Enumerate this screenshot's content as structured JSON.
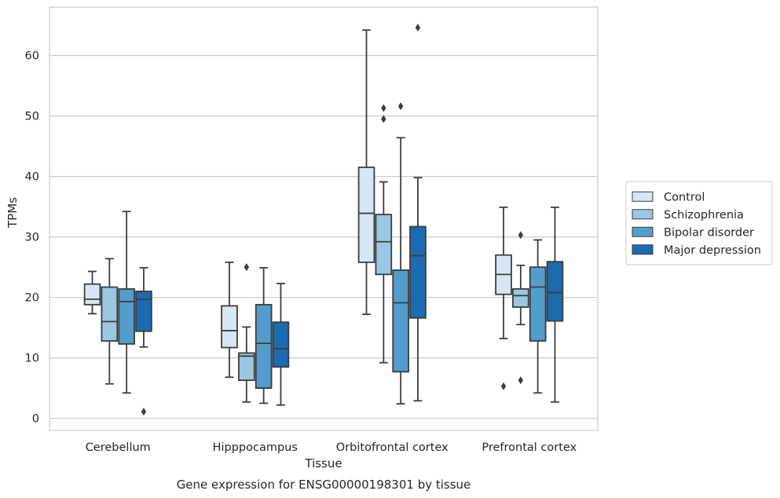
{
  "chart_data": {
    "type": "box",
    "xlabel": "Tissue",
    "ylabel": "TPMs",
    "caption": "Gene expression for ENSG00000198301 by tissue",
    "ylim": [
      -2,
      68
    ],
    "yticks": [
      0,
      10,
      20,
      30,
      40,
      50,
      60
    ],
    "grid": true,
    "legend_position": "right",
    "categories": [
      "Cerebellum",
      "Hipppocampus",
      "Orbitofrontal cortex",
      "Prefrontal cortex"
    ],
    "series": [
      {
        "name": "Control",
        "color": "#d6e6f4",
        "boxes": [
          {
            "wlo": 17.3,
            "q1": 18.8,
            "med": 19.7,
            "q3": 22.2,
            "whi": 24.3,
            "fliers": []
          },
          {
            "wlo": 6.8,
            "q1": 11.7,
            "med": 14.5,
            "q3": 18.6,
            "whi": 25.8,
            "fliers": []
          },
          {
            "wlo": 17.2,
            "q1": 25.8,
            "med": 33.9,
            "q3": 41.5,
            "whi": 64.2,
            "fliers": []
          },
          {
            "wlo": 13.2,
            "q1": 20.5,
            "med": 23.8,
            "q3": 27.0,
            "whi": 34.9,
            "fliers": [
              5.3
            ]
          }
        ]
      },
      {
        "name": "Schizophrenia",
        "color": "#9ac8e0",
        "boxes": [
          {
            "wlo": 5.7,
            "q1": 12.8,
            "med": 16.0,
            "q3": 21.7,
            "whi": 26.4,
            "fliers": []
          },
          {
            "wlo": 2.7,
            "q1": 6.3,
            "med": 10.3,
            "q3": 10.8,
            "whi": 15.1,
            "fliers": [
              25.0
            ]
          },
          {
            "wlo": 9.2,
            "q1": 23.8,
            "med": 29.2,
            "q3": 33.7,
            "whi": 39.1,
            "fliers": [
              49.5,
              51.3
            ]
          },
          {
            "wlo": 15.5,
            "q1": 18.4,
            "med": 20.3,
            "q3": 21.4,
            "whi": 25.3,
            "fliers": [
              30.3,
              6.3
            ]
          }
        ]
      },
      {
        "name": "Bipolar disorder",
        "color": "#529dcc",
        "boxes": [
          {
            "wlo": 4.2,
            "q1": 12.3,
            "med": 19.3,
            "q3": 21.4,
            "whi": 34.2,
            "fliers": []
          },
          {
            "wlo": 2.5,
            "q1": 5.0,
            "med": 12.4,
            "q3": 18.8,
            "whi": 24.9,
            "fliers": []
          },
          {
            "wlo": 2.4,
            "q1": 7.7,
            "med": 19.1,
            "q3": 24.5,
            "whi": 46.4,
            "fliers": [
              51.6
            ]
          },
          {
            "wlo": 4.2,
            "q1": 12.8,
            "med": 21.7,
            "q3": 25.0,
            "whi": 29.5,
            "fliers": []
          }
        ]
      },
      {
        "name": "Major depression",
        "color": "#1c6aaf",
        "boxes": [
          {
            "wlo": 11.8,
            "q1": 14.4,
            "med": 19.7,
            "q3": 21.0,
            "whi": 24.9,
            "fliers": [
              1.1
            ]
          },
          {
            "wlo": 2.2,
            "q1": 8.5,
            "med": 11.5,
            "q3": 15.9,
            "whi": 22.3,
            "fliers": []
          },
          {
            "wlo": 2.9,
            "q1": 16.6,
            "med": 26.9,
            "q3": 31.7,
            "whi": 39.8,
            "fliers": [
              64.6
            ]
          },
          {
            "wlo": 2.7,
            "q1": 16.1,
            "med": 20.8,
            "q3": 25.9,
            "whi": 34.9,
            "fliers": []
          }
        ]
      }
    ]
  }
}
